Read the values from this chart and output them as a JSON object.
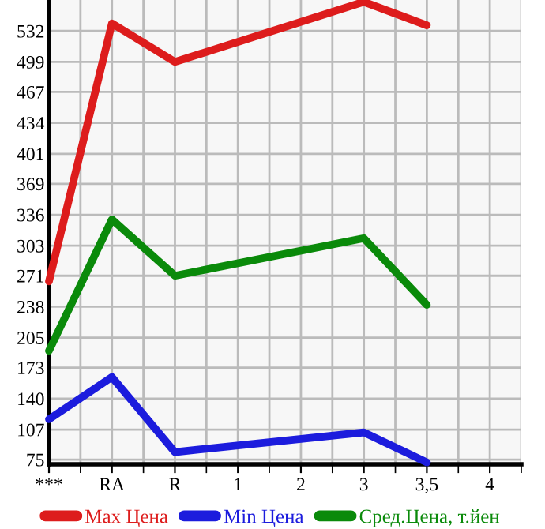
{
  "chart_data": {
    "type": "line",
    "categories": [
      "***",
      "RA",
      "R",
      "1",
      "2",
      "3",
      "3,5",
      "4"
    ],
    "series": [
      {
        "name": "Max Цена",
        "color": "#dd1c1c",
        "values": [
          265,
          540,
          499,
          null,
          null,
          563,
          538,
          null
        ]
      },
      {
        "name": "Min Цена",
        "color": "#1c1cdd",
        "values": [
          118,
          163,
          83,
          null,
          null,
          104,
          72,
          null
        ]
      },
      {
        "name": "Сред.Цена, т.йен",
        "color": "#0a8a0a",
        "values": [
          191,
          331,
          271,
          null,
          null,
          311,
          240,
          null
        ]
      }
    ],
    "ylim": [
      70,
      565
    ],
    "yticks": [
      75,
      107,
      140,
      173,
      205,
      238,
      271,
      303,
      336,
      369,
      401,
      434,
      467,
      499,
      532
    ],
    "grid": true,
    "legend": "bottom",
    "marker": "none",
    "line_style": "solid"
  }
}
